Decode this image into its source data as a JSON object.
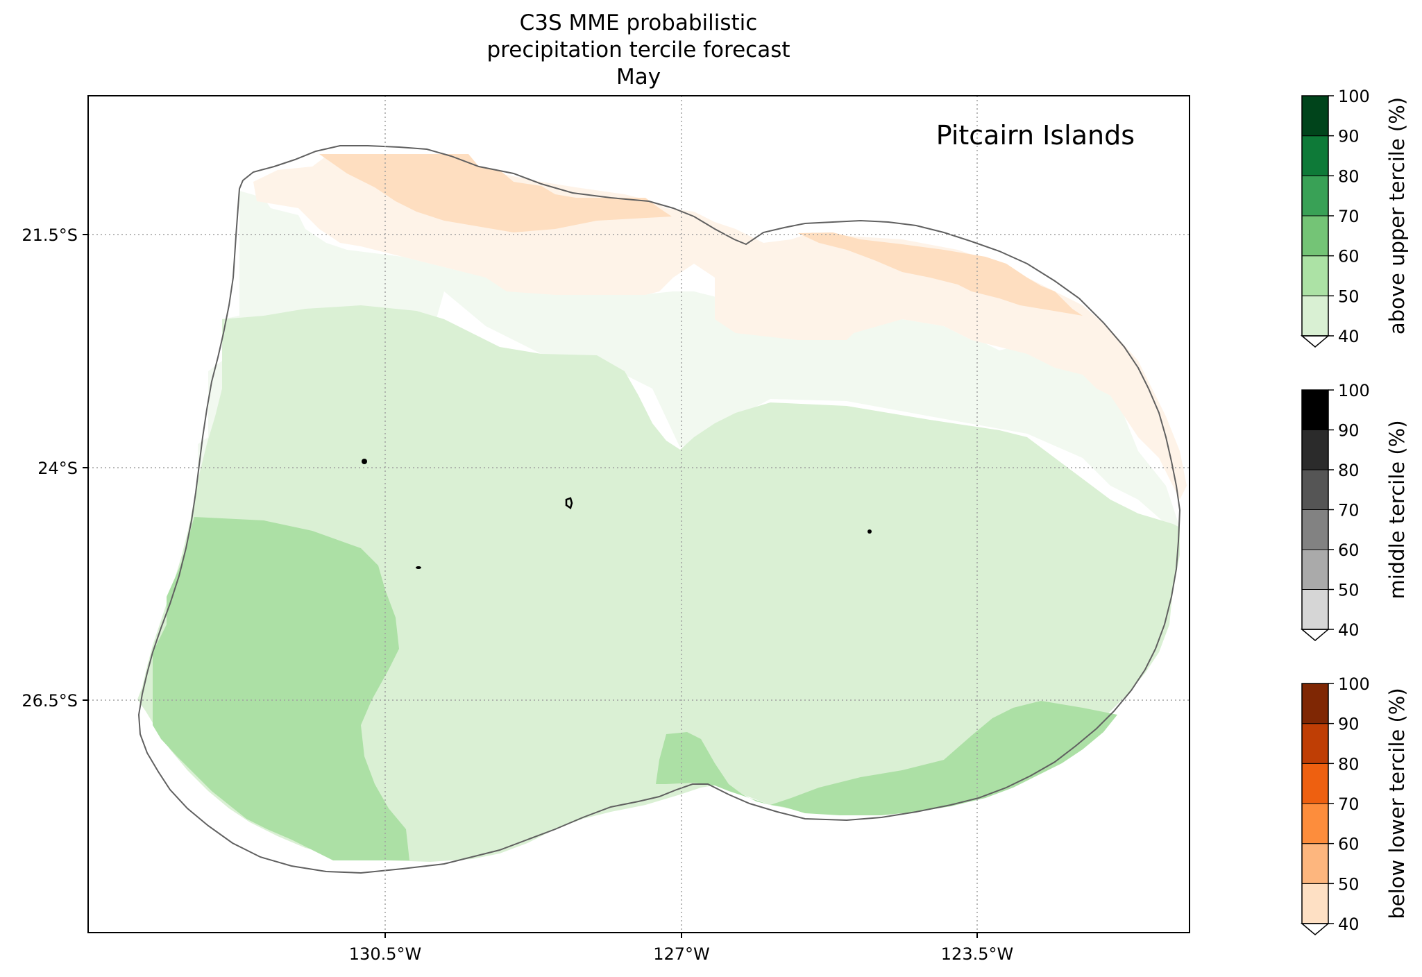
{
  "title_lines": [
    "C3S MME probabilistic",
    "precipitation tercile forecast",
    "May"
  ],
  "region_label": "Pitcairn Islands",
  "x_ticks": [
    "130.5°W",
    "127°W",
    "123.5°W"
  ],
  "y_ticks": [
    "21.5°S",
    "24°S",
    "26.5°S"
  ],
  "colorbars": [
    {
      "label": "above upper tercile (%)",
      "ticks": [
        "40",
        "50",
        "60",
        "70",
        "80",
        "90",
        "100"
      ],
      "colors": [
        "#d9f0d3",
        "#ace2a5",
        "#74c476",
        "#39a156",
        "#0e7a38",
        "#00441b"
      ]
    },
    {
      "label": "middle tercile (%)",
      "ticks": [
        "40",
        "50",
        "60",
        "70",
        "80",
        "90",
        "100"
      ],
      "colors": [
        "#d6d6d6",
        "#aaaaaa",
        "#828282",
        "#555555",
        "#2b2b2b",
        "#000000"
      ]
    },
    {
      "label": "below lower tercile (%)",
      "ticks": [
        "40",
        "50",
        "60",
        "70",
        "80",
        "90",
        "100"
      ],
      "colors": [
        "#fee0c4",
        "#fdb67e",
        "#fd8d3c",
        "#ee6010",
        "#bf3e05",
        "#7f2704"
      ]
    }
  ],
  "chart_data": {
    "type": "map",
    "map_extent_lon": [
      -134.0,
      -121.0
    ],
    "map_extent_lat": [
      -29.0,
      -20.0
    ],
    "projection": "PlateCarree",
    "gridlines": true,
    "gridline_style": "dotted grey",
    "category_legend": {
      "above_upper_tercile_bins": [
        "<40",
        "40-50",
        "50-60"
      ],
      "below_lower_tercile_bins": [
        "<40",
        "40-50"
      ]
    }
  }
}
